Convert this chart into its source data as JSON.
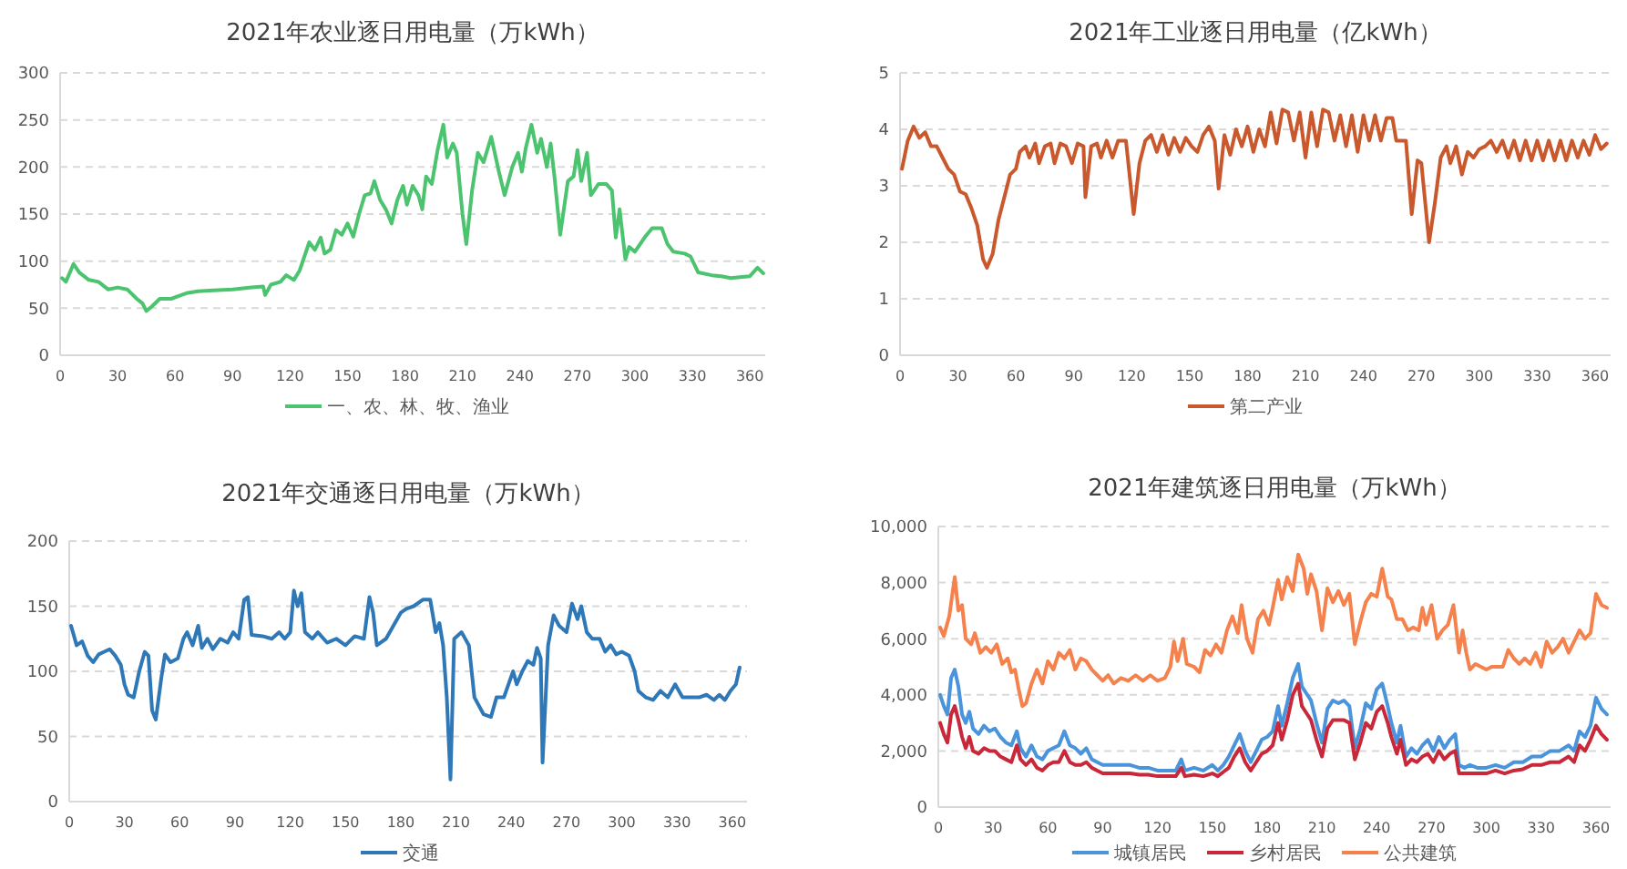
{
  "chart_data": [
    {
      "type": "line",
      "title": "2021年农业逐日用电量（万kWh）",
      "xlim": [
        0,
        368
      ],
      "xticks": [
        0,
        30,
        60,
        90,
        120,
        150,
        180,
        210,
        240,
        270,
        300,
        330,
        360
      ],
      "ylim": [
        0,
        300
      ],
      "yticks": [
        0,
        50,
        100,
        150,
        200,
        250,
        300
      ],
      "grid": "y",
      "legend": "bottom",
      "marker": "none",
      "line_style": "solid",
      "series": [
        {
          "name": "一、农、林、牧、渔业",
          "color": "#4cc46f",
          "x": [
            1,
            3,
            7,
            10,
            15,
            20,
            25,
            30,
            35,
            40,
            43,
            45,
            48,
            52,
            58,
            62,
            66,
            72,
            80,
            90,
            100,
            106,
            107,
            110,
            115,
            118,
            122,
            125,
            130,
            133,
            136,
            138,
            141,
            144,
            147,
            150,
            153,
            156,
            159,
            162,
            164,
            167,
            170,
            173,
            176,
            179,
            181,
            184,
            187,
            189,
            191,
            194,
            197,
            200,
            202,
            205,
            207,
            210,
            212,
            215,
            218,
            221,
            225,
            229,
            232,
            236,
            239,
            241,
            243,
            246,
            249,
            251,
            254,
            256,
            258,
            261,
            265,
            268,
            270,
            272,
            275,
            277,
            281,
            285,
            288,
            290,
            292,
            295,
            297,
            300,
            305,
            309,
            314,
            317,
            320,
            326,
            329,
            333,
            340,
            345,
            350,
            355,
            360,
            364,
            367
          ],
          "values": [
            82,
            78,
            97,
            88,
            80,
            78,
            70,
            72,
            70,
            60,
            55,
            47,
            52,
            60,
            60,
            63,
            66,
            68,
            69,
            70,
            72,
            73,
            64,
            75,
            78,
            85,
            80,
            90,
            120,
            112,
            125,
            108,
            112,
            133,
            128,
            140,
            126,
            150,
            170,
            172,
            185,
            165,
            155,
            140,
            165,
            180,
            160,
            180,
            170,
            155,
            190,
            182,
            218,
            245,
            210,
            225,
            215,
            150,
            118,
            175,
            215,
            205,
            232,
            195,
            170,
            200,
            215,
            195,
            220,
            245,
            215,
            230,
            200,
            225,
            190,
            128,
            185,
            190,
            218,
            185,
            215,
            170,
            182,
            182,
            175,
            125,
            155,
            102,
            115,
            110,
            125,
            135,
            135,
            118,
            110,
            108,
            105,
            88,
            85,
            84,
            82,
            83,
            84,
            93,
            87
          ]
        }
      ]
    },
    {
      "type": "line",
      "title": "2021年工业逐日用电量（亿kWh）",
      "xlim": [
        0,
        368
      ],
      "xticks": [
        0,
        30,
        60,
        90,
        120,
        150,
        180,
        210,
        240,
        270,
        300,
        330,
        360
      ],
      "ylim": [
        0,
        5
      ],
      "yticks": [
        0,
        1,
        2,
        3,
        4,
        5
      ],
      "grid": "y",
      "legend": "bottom",
      "marker": "none",
      "line_style": "solid",
      "series": [
        {
          "name": "第二产业",
          "color": "#c9582c",
          "x": [
            1,
            4,
            7,
            10,
            13,
            16,
            19,
            22,
            25,
            28,
            31,
            34,
            37,
            40,
            43,
            45,
            48,
            51,
            54,
            57,
            60,
            62,
            65,
            67,
            70,
            72,
            75,
            78,
            80,
            83,
            86,
            89,
            92,
            95,
            96,
            99,
            102,
            104,
            107,
            110,
            113,
            117,
            121,
            124,
            127,
            130,
            133,
            136,
            139,
            142,
            145,
            148,
            151,
            154,
            157,
            160,
            163,
            165,
            168,
            171,
            174,
            177,
            180,
            183,
            186,
            189,
            192,
            195,
            198,
            201,
            204,
            207,
            210,
            213,
            216,
            219,
            222,
            225,
            228,
            231,
            234,
            237,
            240,
            243,
            246,
            249,
            252,
            255,
            257,
            262,
            265,
            268,
            270,
            274,
            277,
            280,
            283,
            285,
            288,
            291,
            294,
            297,
            300,
            303,
            306,
            309,
            312,
            315,
            318,
            321,
            324,
            327,
            330,
            333,
            336,
            339,
            342,
            345,
            348,
            351,
            354,
            357,
            360,
            363,
            366
          ],
          "values": [
            3.3,
            3.8,
            4.05,
            3.85,
            3.95,
            3.7,
            3.7,
            3.5,
            3.3,
            3.2,
            2.9,
            2.85,
            2.6,
            2.3,
            1.7,
            1.55,
            1.8,
            2.4,
            2.8,
            3.2,
            3.3,
            3.6,
            3.7,
            3.5,
            3.75,
            3.4,
            3.7,
            3.75,
            3.4,
            3.75,
            3.7,
            3.4,
            3.75,
            3.7,
            2.8,
            3.7,
            3.75,
            3.5,
            3.8,
            3.5,
            3.8,
            3.8,
            2.5,
            3.4,
            3.8,
            3.9,
            3.6,
            3.9,
            3.55,
            3.85,
            3.6,
            3.85,
            3.7,
            3.6,
            3.9,
            4.05,
            3.8,
            2.95,
            3.9,
            3.55,
            4.0,
            3.7,
            4.05,
            3.6,
            4.0,
            3.7,
            4.3,
            3.75,
            4.35,
            4.3,
            3.8,
            4.3,
            3.5,
            4.3,
            3.7,
            4.35,
            4.3,
            3.8,
            4.25,
            3.7,
            4.25,
            3.6,
            4.25,
            3.8,
            4.25,
            3.8,
            4.2,
            4.2,
            3.8,
            3.8,
            2.5,
            3.45,
            3.4,
            2.0,
            2.7,
            3.5,
            3.7,
            3.4,
            3.7,
            3.2,
            3.6,
            3.5,
            3.65,
            3.7,
            3.8,
            3.6,
            3.8,
            3.5,
            3.8,
            3.45,
            3.8,
            3.45,
            3.8,
            3.45,
            3.8,
            3.45,
            3.8,
            3.45,
            3.8,
            3.5,
            3.8,
            3.55,
            3.9,
            3.65,
            3.75
          ]
        }
      ]
    },
    {
      "type": "line",
      "title": "2021年交通逐日用电量（万kWh）",
      "xlim": [
        0,
        368
      ],
      "xticks": [
        0,
        30,
        60,
        90,
        120,
        150,
        180,
        210,
        240,
        270,
        300,
        330,
        360
      ],
      "ylim": [
        0,
        200
      ],
      "yticks": [
        0,
        50,
        100,
        150,
        200
      ],
      "grid": "y",
      "legend": "bottom",
      "marker": "none",
      "line_style": "solid",
      "series": [
        {
          "name": "交通",
          "color": "#2f78b8",
          "x": [
            1,
            4,
            7,
            10,
            13,
            16,
            19,
            22,
            25,
            28,
            30,
            32,
            35,
            38,
            41,
            43,
            45,
            47,
            50,
            52,
            55,
            59,
            62,
            64,
            67,
            70,
            72,
            75,
            78,
            82,
            86,
            89,
            92,
            95,
            97,
            99,
            105,
            110,
            114,
            117,
            120,
            122,
            124,
            126,
            128,
            132,
            135,
            140,
            145,
            150,
            155,
            160,
            163,
            165,
            167,
            172,
            176,
            180,
            183,
            187,
            192,
            196,
            199,
            201,
            203,
            205,
            207,
            209,
            213,
            217,
            220,
            225,
            229,
            232,
            236,
            239,
            241,
            243,
            246,
            249,
            252,
            254,
            256,
            257,
            260,
            263,
            266,
            270,
            273,
            276,
            278,
            281,
            284,
            288,
            291,
            294,
            297,
            300,
            304,
            307,
            309,
            313,
            317,
            321,
            325,
            329,
            333,
            338,
            342,
            346,
            350,
            353,
            356,
            359,
            362,
            364
          ],
          "values": [
            135,
            120,
            123,
            112,
            107,
            113,
            115,
            117,
            112,
            105,
            90,
            82,
            80,
            100,
            115,
            112,
            70,
            63,
            95,
            113,
            107,
            110,
            125,
            130,
            120,
            135,
            118,
            125,
            117,
            125,
            122,
            130,
            125,
            155,
            157,
            128,
            127,
            125,
            130,
            125,
            130,
            162,
            150,
            160,
            130,
            125,
            130,
            122,
            125,
            120,
            127,
            125,
            157,
            145,
            120,
            125,
            135,
            145,
            148,
            150,
            155,
            155,
            130,
            137,
            120,
            80,
            17,
            125,
            130,
            120,
            80,
            67,
            65,
            80,
            80,
            92,
            100,
            90,
            100,
            108,
            105,
            118,
            110,
            30,
            120,
            143,
            135,
            130,
            152,
            140,
            150,
            130,
            125,
            125,
            115,
            120,
            113,
            115,
            112,
            100,
            85,
            80,
            78,
            85,
            80,
            90,
            80,
            80,
            80,
            82,
            78,
            82,
            78,
            85,
            90,
            103
          ]
        }
      ]
    },
    {
      "type": "line",
      "title": "2021年建筑逐日用电量（万kWh）",
      "xlim": [
        0,
        368
      ],
      "xticks": [
        0,
        30,
        60,
        90,
        120,
        150,
        180,
        210,
        240,
        270,
        300,
        330,
        360
      ],
      "ylim": [
        0,
        10000
      ],
      "yticks": [
        0,
        {
          "value": 2000,
          "label": "2,000"
        },
        {
          "value": 4000,
          "label": "4,000"
        },
        {
          "value": 6000,
          "label": "6,000"
        },
        {
          "value": 8000,
          "label": "8,000"
        },
        {
          "value": 10000,
          "label": "10,000"
        }
      ],
      "grid": "y",
      "legend": "bottom",
      "marker": "none",
      "line_style": "solid",
      "series": [
        {
          "name": "城镇居民",
          "color": "#4a94dc",
          "x": [
            1,
            3,
            5,
            7,
            9,
            11,
            13,
            15,
            17,
            19,
            22,
            25,
            28,
            31,
            34,
            37,
            40,
            43,
            45,
            48,
            51,
            54,
            57,
            60,
            63,
            66,
            69,
            72,
            75,
            78,
            81,
            84,
            87,
            90,
            95,
            100,
            105,
            110,
            115,
            120,
            125,
            130,
            133,
            135,
            140,
            145,
            150,
            153,
            156,
            159,
            162,
            165,
            168,
            171,
            174,
            177,
            180,
            183,
            186,
            188,
            191,
            194,
            197,
            199,
            201,
            204,
            207,
            210,
            213,
            216,
            219,
            222,
            225,
            228,
            231,
            234,
            237,
            240,
            243,
            246,
            248,
            251,
            253,
            256,
            259,
            262,
            265,
            268,
            271,
            274,
            277,
            280,
            283,
            285,
            288,
            291,
            295,
            300,
            305,
            310,
            315,
            320,
            325,
            330,
            335,
            340,
            345,
            348,
            351,
            354,
            357,
            360,
            363,
            366
          ],
          "values": [
            4000,
            3600,
            3300,
            4600,
            4900,
            4300,
            3300,
            3000,
            3400,
            2800,
            2600,
            2900,
            2700,
            2800,
            2500,
            2300,
            2200,
            2700,
            2100,
            1800,
            2200,
            1800,
            1700,
            2000,
            2100,
            2200,
            2700,
            2200,
            2100,
            1900,
            2100,
            1700,
            1600,
            1500,
            1500,
            1500,
            1500,
            1400,
            1400,
            1300,
            1300,
            1300,
            1700,
            1300,
            1400,
            1300,
            1500,
            1300,
            1500,
            1800,
            2200,
            2600,
            2000,
            1600,
            2000,
            2400,
            2500,
            2700,
            3600,
            2900,
            3700,
            4600,
            5100,
            4300,
            4100,
            3800,
            3000,
            2300,
            3500,
            3800,
            3700,
            3800,
            3600,
            2100,
            2800,
            3700,
            3500,
            4200,
            4400,
            3600,
            3000,
            2300,
            2900,
            1800,
            2100,
            1900,
            2200,
            2400,
            2000,
            2500,
            2100,
            2400,
            2600,
            1500,
            1400,
            1500,
            1400,
            1400,
            1500,
            1400,
            1600,
            1600,
            1800,
            1800,
            2000,
            2000,
            2200,
            2000,
            2700,
            2500,
            2900,
            3900,
            3500,
            3300
          ]
        },
        {
          "name": "乡村居民",
          "color": "#c8283a",
          "x": [
            1,
            3,
            5,
            7,
            9,
            11,
            13,
            15,
            17,
            19,
            22,
            25,
            28,
            31,
            34,
            37,
            40,
            43,
            45,
            48,
            51,
            54,
            57,
            60,
            63,
            66,
            69,
            72,
            75,
            78,
            81,
            84,
            87,
            90,
            95,
            100,
            105,
            110,
            115,
            120,
            125,
            130,
            133,
            135,
            140,
            145,
            150,
            153,
            156,
            159,
            162,
            165,
            168,
            171,
            174,
            177,
            180,
            183,
            186,
            188,
            191,
            194,
            197,
            199,
            201,
            204,
            207,
            210,
            213,
            216,
            219,
            222,
            225,
            228,
            231,
            234,
            237,
            240,
            243,
            246,
            248,
            251,
            253,
            256,
            259,
            262,
            265,
            268,
            271,
            274,
            277,
            280,
            283,
            285,
            288,
            291,
            295,
            300,
            305,
            310,
            315,
            320,
            325,
            330,
            335,
            340,
            345,
            348,
            351,
            354,
            357,
            360,
            363,
            366
          ],
          "values": [
            3000,
            2600,
            2300,
            3300,
            3600,
            3100,
            2500,
            2100,
            2500,
            2000,
            1900,
            2100,
            2000,
            2000,
            1800,
            1700,
            1600,
            2200,
            1700,
            1500,
            1700,
            1400,
            1300,
            1500,
            1600,
            1600,
            2000,
            1600,
            1500,
            1500,
            1600,
            1400,
            1300,
            1200,
            1200,
            1200,
            1200,
            1150,
            1150,
            1100,
            1100,
            1100,
            1400,
            1100,
            1150,
            1100,
            1200,
            1100,
            1250,
            1400,
            1800,
            2100,
            1600,
            1300,
            1600,
            1900,
            2000,
            2200,
            3000,
            2400,
            3100,
            4000,
            4400,
            3600,
            3400,
            3100,
            2400,
            1800,
            2800,
            3100,
            3100,
            3100,
            3000,
            1700,
            2300,
            3000,
            2800,
            3400,
            3600,
            3000,
            2500,
            1900,
            2400,
            1500,
            1700,
            1600,
            1800,
            1900,
            1600,
            2000,
            1700,
            1900,
            2000,
            1200,
            1200,
            1200,
            1200,
            1200,
            1300,
            1200,
            1300,
            1350,
            1500,
            1500,
            1600,
            1600,
            1800,
            1600,
            2200,
            2000,
            2400,
            2900,
            2600,
            2400
          ]
        },
        {
          "name": "公共建筑",
          "color": "#f5814c",
          "x": [
            1,
            3,
            6,
            9,
            11,
            13,
            15,
            18,
            20,
            23,
            26,
            29,
            32,
            35,
            38,
            40,
            42,
            44,
            46,
            48,
            51,
            54,
            57,
            60,
            63,
            66,
            69,
            72,
            75,
            78,
            81,
            84,
            87,
            90,
            93,
            96,
            100,
            104,
            108,
            112,
            116,
            120,
            124,
            127,
            129,
            131,
            134,
            136,
            140,
            143,
            146,
            149,
            152,
            155,
            158,
            161,
            164,
            166,
            169,
            172,
            175,
            178,
            181,
            183,
            186,
            188,
            191,
            194,
            197,
            200,
            202,
            204,
            207,
            210,
            213,
            216,
            219,
            222,
            225,
            228,
            231,
            234,
            237,
            240,
            243,
            246,
            248,
            251,
            254,
            257,
            260,
            263,
            265,
            267,
            270,
            273,
            276,
            279,
            282,
            285,
            287,
            289,
            291,
            294,
            297,
            300,
            303,
            306,
            309,
            312,
            315,
            318,
            321,
            324,
            327,
            330,
            333,
            336,
            339,
            342,
            345,
            348,
            351,
            354,
            357,
            360,
            363,
            366
          ],
          "values": [
            6400,
            6100,
            6800,
            8200,
            7000,
            7200,
            6000,
            5800,
            6200,
            5500,
            5700,
            5500,
            5800,
            5100,
            5300,
            4800,
            4900,
            4200,
            3600,
            3700,
            4400,
            4900,
            4400,
            5200,
            4900,
            5500,
            5300,
            5600,
            4900,
            5300,
            5200,
            4900,
            4700,
            4500,
            4700,
            4400,
            4600,
            4500,
            4700,
            4500,
            4700,
            4500,
            4600,
            5000,
            5900,
            5200,
            6000,
            5100,
            5000,
            4800,
            5600,
            5400,
            5800,
            5500,
            6300,
            6800,
            6200,
            7200,
            6000,
            5500,
            6700,
            7000,
            6500,
            7100,
            8100,
            7400,
            8200,
            7700,
            9000,
            8500,
            7600,
            8300,
            7700,
            6300,
            7800,
            7300,
            7700,
            7200,
            7600,
            5800,
            6600,
            7300,
            7600,
            7500,
            8500,
            7500,
            7400,
            6700,
            6700,
            6300,
            6400,
            6300,
            7100,
            6500,
            7200,
            6000,
            6300,
            6500,
            7200,
            5500,
            6300,
            5500,
            4900,
            5100,
            5000,
            4900,
            5000,
            5000,
            5000,
            5600,
            5300,
            5100,
            5300,
            5100,
            5500,
            5000,
            5900,
            5500,
            5700,
            6000,
            5500,
            5900,
            6300,
            6000,
            6200,
            7600,
            7200,
            7100
          ]
        }
      ]
    }
  ]
}
